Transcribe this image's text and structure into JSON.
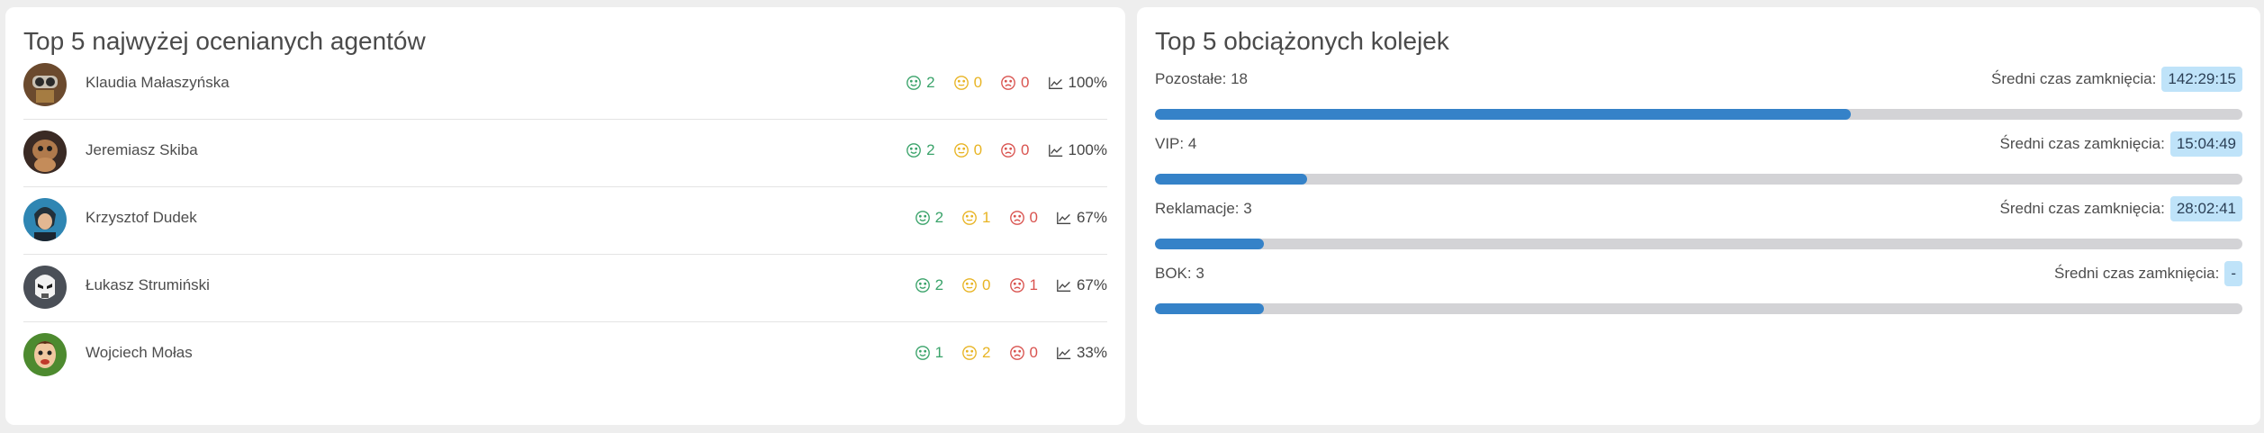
{
  "agents_panel": {
    "title": "Top 5 najwyżej ocenianych agentów",
    "agents": [
      {
        "name": "Klaudia Małaszyńska",
        "good": "2",
        "neutral": "0",
        "bad": "0",
        "rate": "100%",
        "avatar": "robot-avatar"
      },
      {
        "name": "Jeremiasz Skiba",
        "good": "2",
        "neutral": "0",
        "bad": "0",
        "rate": "100%",
        "avatar": "creature-avatar"
      },
      {
        "name": "Krzysztof Dudek",
        "good": "2",
        "neutral": "1",
        "bad": "0",
        "rate": "67%",
        "avatar": "hero-avatar"
      },
      {
        "name": "Łukasz Strumiński",
        "good": "2",
        "neutral": "0",
        "bad": "1",
        "rate": "67%",
        "avatar": "trooper-avatar"
      },
      {
        "name": "Wojciech Mołas",
        "good": "1",
        "neutral": "2",
        "bad": "0",
        "rate": "33%",
        "avatar": "cartoon-avatar"
      }
    ]
  },
  "queues_panel": {
    "title": "Top 5 obciążonych kolejek",
    "closing_time_label": "Średni czas zamknięcia:",
    "queues": [
      {
        "label": "Pozostałe: 18",
        "time": "142:29:15",
        "load": 0.64
      },
      {
        "label": "VIP: 4",
        "time": "15:04:49",
        "load": 0.14
      },
      {
        "label": "Reklamacje: 3",
        "time": "28:02:41",
        "load": 0.1
      },
      {
        "label": "BOK: 3",
        "time": "-",
        "load": 0.1
      }
    ]
  },
  "colors": {
    "good": "#3aa36a",
    "neutral": "#e8b424",
    "bad": "#d9534f",
    "bar_fill": "#3582c8",
    "bar_track": "#d3d3d6",
    "badge": "#bfe3f9"
  }
}
